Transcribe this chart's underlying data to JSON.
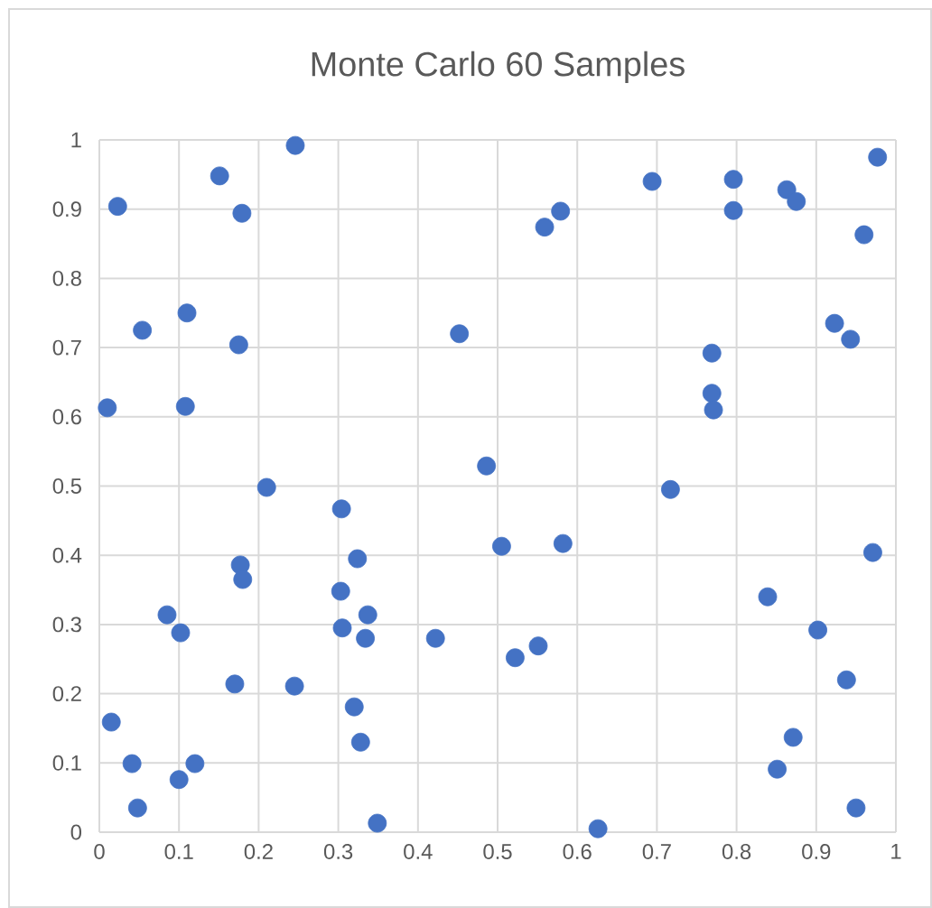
{
  "chart_data": {
    "type": "scatter",
    "title": "Monte Carlo 60 Samples",
    "marker": "circle",
    "grid": true,
    "xlim": [
      0,
      1
    ],
    "ylim": [
      0,
      1
    ],
    "xticks": [
      0,
      0.1,
      0.2,
      0.3,
      0.4,
      0.5,
      0.6,
      0.7,
      0.8,
      0.9,
      1
    ],
    "yticks": [
      0,
      0.1,
      0.2,
      0.3,
      0.4,
      0.5,
      0.6,
      0.7,
      0.8,
      0.9,
      1
    ],
    "series": [
      {
        "color": "#4472c4",
        "x": [
          0.246,
          0.151,
          0.023,
          0.179,
          0.054,
          0.11,
          0.175,
          0.01,
          0.108,
          0.21,
          0.177,
          0.18,
          0.085,
          0.102,
          0.17,
          0.245,
          0.015,
          0.041,
          0.12,
          0.1,
          0.048,
          0.304,
          0.324,
          0.303,
          0.337,
          0.305,
          0.334,
          0.32,
          0.328,
          0.349,
          0.422,
          0.452,
          0.486,
          0.505,
          0.522,
          0.551,
          0.582,
          0.559,
          0.579,
          0.626,
          0.694,
          0.717,
          0.769,
          0.769,
          0.771,
          0.796,
          0.796,
          0.839,
          0.851,
          0.863,
          0.875,
          0.871,
          0.902,
          0.923,
          0.943,
          0.938,
          0.95,
          0.96,
          0.971,
          0.977
        ],
        "values": [
          0.992,
          0.948,
          0.904,
          0.894,
          0.725,
          0.75,
          0.704,
          0.613,
          0.615,
          0.498,
          0.386,
          0.365,
          0.314,
          0.288,
          0.214,
          0.211,
          0.159,
          0.099,
          0.099,
          0.076,
          0.035,
          0.467,
          0.395,
          0.348,
          0.314,
          0.295,
          0.28,
          0.181,
          0.13,
          0.013,
          0.28,
          0.72,
          0.529,
          0.413,
          0.252,
          0.269,
          0.417,
          0.874,
          0.897,
          0.005,
          0.94,
          0.495,
          0.692,
          0.634,
          0.61,
          0.943,
          0.898,
          0.34,
          0.091,
          0.928,
          0.911,
          0.137,
          0.292,
          0.735,
          0.712,
          0.22,
          0.035,
          0.863,
          0.404,
          0.975
        ]
      }
    ]
  }
}
